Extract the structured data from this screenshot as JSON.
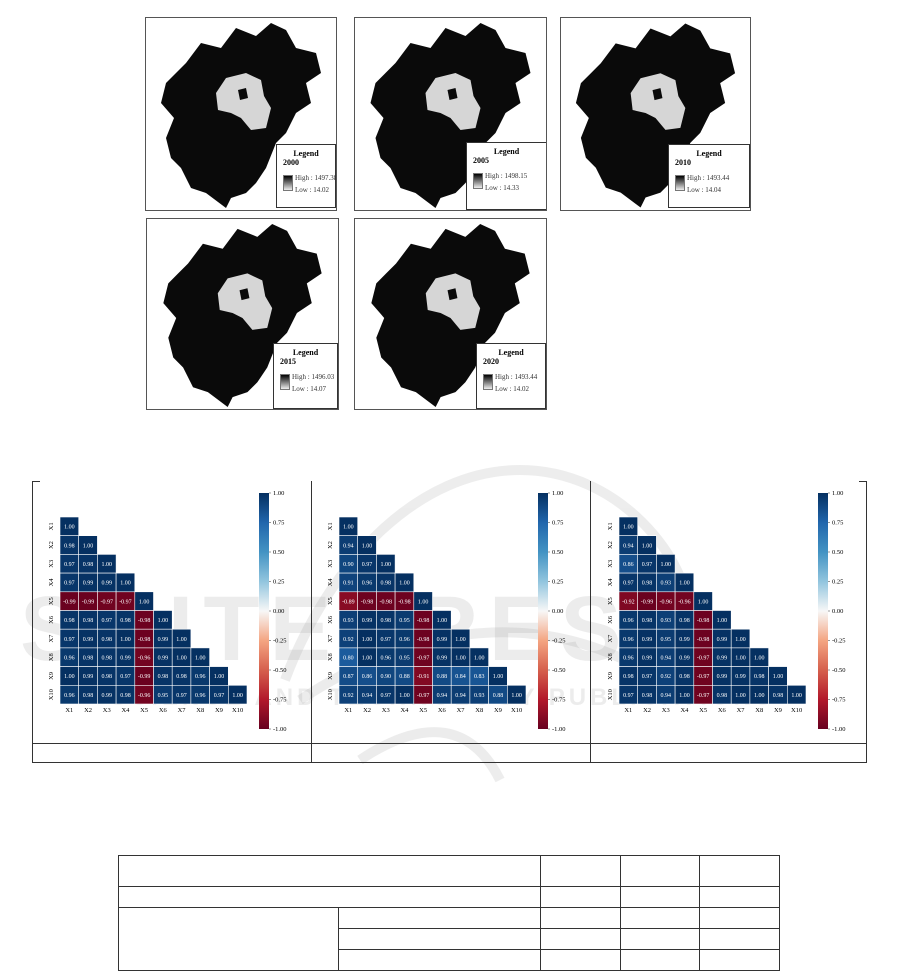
{
  "maps": [
    {
      "year": "2000",
      "legend_title": "Legend",
      "high": "High : 1497.38",
      "low": "Low : 14.02"
    },
    {
      "year": "2005",
      "legend_title": "Legend",
      "high": "High : 1498.15",
      "low": "Low : 14.33"
    },
    {
      "year": "2010",
      "legend_title": "Legend",
      "high": "High : 1493.44",
      "low": "Low : 14.04"
    },
    {
      "year": "2015",
      "legend_title": "Legend",
      "high": "High : 1496.03",
      "low": "Low : 14.07"
    },
    {
      "year": "2020",
      "legend_title": "Legend",
      "high": "High : 1493.44",
      "low": "Low : 14.02"
    }
  ],
  "colors": {
    "map_region": "#0a0a0a",
    "map_core": "#d6d6d6",
    "blue_dark": "#08306b",
    "red_dark": "#8b0a1d"
  },
  "chart_data": [
    {
      "type": "heatmap",
      "labels": [
        "X1",
        "X2",
        "X3",
        "X4",
        "X5",
        "X6",
        "X7",
        "X8",
        "X9",
        "X10"
      ],
      "values": [
        [
          "1.00"
        ],
        [
          "0.98",
          "1.00"
        ],
        [
          "0.97",
          "0.98",
          "1.00"
        ],
        [
          "0.97",
          "0.99",
          "0.99",
          "1.00"
        ],
        [
          "-0.99",
          "-0.99",
          "-0.97",
          "-0.97",
          "1.00"
        ],
        [
          "0.98",
          "0.98",
          "0.97",
          "0.98",
          "-0.98",
          "1.00"
        ],
        [
          "0.97",
          "0.99",
          "0.98",
          "1.00",
          "-0.98",
          "0.99",
          "1.00"
        ],
        [
          "0.96",
          "0.98",
          "0.98",
          "0.99",
          "-0.96",
          "0.99",
          "1.00",
          "1.00"
        ],
        [
          "1.00",
          "0.99",
          "0.98",
          "0.97",
          "-0.99",
          "0.98",
          "0.98",
          "0.96",
          "1.00"
        ],
        [
          "0.96",
          "0.98",
          "0.99",
          "0.98",
          "-0.96",
          "0.95",
          "0.97",
          "0.96",
          "0.97",
          "1.00"
        ]
      ],
      "colorbar_ticks": [
        "1.00",
        "0.75",
        "0.50",
        "0.25",
        "0.00",
        "-0.25",
        "-0.50",
        "-0.75",
        "-1.00"
      ],
      "range": [
        -1,
        1
      ]
    },
    {
      "type": "heatmap",
      "labels": [
        "X1",
        "X2",
        "X3",
        "X4",
        "X5",
        "X6",
        "X7",
        "X8",
        "X9",
        "X10"
      ],
      "values": [
        [
          "1.00"
        ],
        [
          "0.94",
          "1.00"
        ],
        [
          "0.90",
          "0.97",
          "1.00"
        ],
        [
          "0.91",
          "0.96",
          "0.98",
          "1.00"
        ],
        [
          "-0.89",
          "-0.98",
          "-0.98",
          "-0.98",
          "1.00"
        ],
        [
          "0.93",
          "0.99",
          "0.98",
          "0.95",
          "-0.98",
          "1.00"
        ],
        [
          "0.92",
          "1.00",
          "0.97",
          "0.96",
          "-0.98",
          "0.99",
          "1.00"
        ],
        [
          "0.80",
          "1.00",
          "0.96",
          "0.95",
          "-0.97",
          "0.99",
          "1.00",
          "1.00"
        ],
        [
          "0.87",
          "0.86",
          "0.90",
          "0.88",
          "-0.91",
          "0.88",
          "0.84",
          "0.83",
          "1.00"
        ],
        [
          "0.92",
          "0.94",
          "0.97",
          "1.00",
          "-0.97",
          "0.94",
          "0.94",
          "0.93",
          "0.88",
          "1.00"
        ]
      ],
      "colorbar_ticks": [
        "1.00",
        "0.75",
        "0.50",
        "0.25",
        "0.00",
        "-0.25",
        "-0.50",
        "-0.75",
        "-1.00"
      ],
      "range": [
        -1,
        1
      ]
    },
    {
      "type": "heatmap",
      "labels": [
        "X1",
        "X2",
        "X3",
        "X4",
        "X5",
        "X6",
        "X7",
        "X8",
        "X9",
        "X10"
      ],
      "values": [
        [
          "1.00"
        ],
        [
          "0.94",
          "1.00"
        ],
        [
          "0.86",
          "0.97",
          "1.00"
        ],
        [
          "0.97",
          "0.98",
          "0.93",
          "1.00"
        ],
        [
          "-0.92",
          "-0.99",
          "-0.96",
          "-0.96",
          "1.00"
        ],
        [
          "0.96",
          "0.98",
          "0.93",
          "0.98",
          "-0.98",
          "1.00"
        ],
        [
          "0.96",
          "0.99",
          "0.95",
          "0.99",
          "-0.98",
          "0.99",
          "1.00"
        ],
        [
          "0.96",
          "0.99",
          "0.94",
          "0.99",
          "-0.97",
          "0.99",
          "1.00",
          "1.00"
        ],
        [
          "0.98",
          "0.97",
          "0.92",
          "0.98",
          "-0.97",
          "0.99",
          "0.99",
          "0.98",
          "1.00"
        ],
        [
          "0.97",
          "0.98",
          "0.94",
          "1.00",
          "-0.97",
          "0.98",
          "1.00",
          "1.00",
          "0.98",
          "1.00"
        ]
      ],
      "colorbar_ticks": [
        "1.00",
        "0.75",
        "0.50",
        "0.25",
        "0.00",
        "-0.25",
        "-0.50",
        "-0.75",
        "-1.00"
      ],
      "range": [
        -1,
        1
      ]
    }
  ],
  "watermark": {
    "text": "SCITEPRESS",
    "subtext": "SCIENCE AND TECHNOLOGY PUBLICATIONS"
  }
}
